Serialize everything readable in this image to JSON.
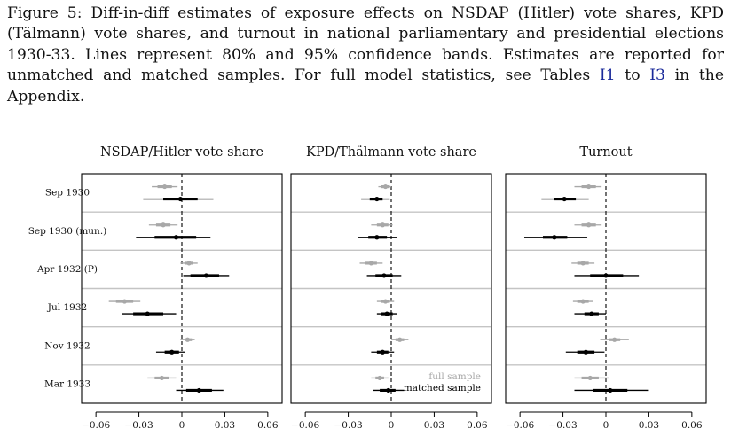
{
  "caption": {
    "part1": "Figure 5:  Diff-in-diff estimates of exposure effects on NSDAP (Hitler) vote shares, KPD (Tälmann) vote shares, and turnout in national parliamentary and presidential elections 1930-33.  Lines represent 80% and 95% confidence bands.  Estimates are reported for unmatched and matched samples.  For full model statistics, see Tables ",
    "ref1": "I1",
    "part2": " to ",
    "ref2": "I3",
    "part3": " in the Appendix."
  },
  "colors": {
    "full_sample": "#a8a8a8",
    "matched_sample": "#000000",
    "separator": "#c4c4c4"
  },
  "chart_data": {
    "type": "scatter",
    "panels": [
      {
        "title": "NSDAP/Hitler vote share",
        "rows": [
          {
            "full": {
              "est": -0.012,
              "ci80": [
                -0.017,
                -0.007
              ],
              "ci95": [
                -0.021,
                -0.003
              ]
            },
            "matched": {
              "est": -0.001,
              "ci80": [
                -0.013,
                0.011
              ],
              "ci95": [
                -0.027,
                0.022
              ]
            }
          },
          {
            "full": {
              "est": -0.013,
              "ci80": [
                -0.018,
                -0.008
              ],
              "ci95": [
                -0.023,
                -0.003
              ]
            },
            "matched": {
              "est": -0.004,
              "ci80": [
                -0.019,
                0.01
              ],
              "ci95": [
                -0.032,
                0.02
              ]
            }
          },
          {
            "full": {
              "est": 0.005,
              "ci80": [
                0.002,
                0.008
              ],
              "ci95": [
                -0.001,
                0.011
              ]
            },
            "matched": {
              "est": 0.017,
              "ci80": [
                0.006,
                0.026
              ],
              "ci95": [
                0.001,
                0.033
              ]
            }
          },
          {
            "full": {
              "est": -0.04,
              "ci80": [
                -0.046,
                -0.034
              ],
              "ci95": [
                -0.051,
                -0.029
              ]
            },
            "matched": {
              "est": -0.024,
              "ci80": [
                -0.034,
                -0.013
              ],
              "ci95": [
                -0.042,
                -0.004
              ]
            }
          },
          {
            "full": {
              "est": 0.004,
              "ci80": [
                0.002,
                0.007
              ],
              "ci95": [
                -0.001,
                0.009
              ]
            },
            "matched": {
              "est": -0.007,
              "ci80": [
                -0.012,
                -0.002
              ],
              "ci95": [
                -0.018,
                0.002
              ]
            }
          },
          {
            "full": {
              "est": -0.014,
              "ci80": [
                -0.019,
                -0.009
              ],
              "ci95": [
                -0.024,
                -0.004
              ]
            },
            "matched": {
              "est": 0.012,
              "ci80": [
                0.003,
                0.021
              ],
              "ci95": [
                -0.004,
                0.029
              ]
            }
          }
        ]
      },
      {
        "title": "KPD/Thälmann vote share",
        "rows": [
          {
            "full": {
              "est": -0.004,
              "ci80": [
                -0.007,
                -0.001
              ],
              "ci95": [
                -0.009,
                0.0
              ]
            },
            "matched": {
              "est": -0.01,
              "ci80": [
                -0.015,
                -0.006
              ],
              "ci95": [
                -0.021,
                -0.001
              ]
            }
          },
          {
            "full": {
              "est": -0.006,
              "ci80": [
                -0.01,
                -0.002
              ],
              "ci95": [
                -0.014,
                0.001
              ]
            },
            "matched": {
              "est": -0.01,
              "ci80": [
                -0.016,
                -0.003
              ],
              "ci95": [
                -0.023,
                0.004
              ]
            }
          },
          {
            "full": {
              "est": -0.014,
              "ci80": [
                -0.018,
                -0.01
              ],
              "ci95": [
                -0.022,
                -0.006
              ]
            },
            "matched": {
              "est": -0.005,
              "ci80": [
                -0.011,
                0.001
              ],
              "ci95": [
                -0.017,
                0.007
              ]
            }
          },
          {
            "full": {
              "est": -0.004,
              "ci80": [
                -0.007,
                -0.001
              ],
              "ci95": [
                -0.01,
                0.002
              ]
            },
            "matched": {
              "est": -0.003,
              "ci80": [
                -0.007,
                0.001
              ],
              "ci95": [
                -0.01,
                0.004
              ]
            }
          },
          {
            "full": {
              "est": 0.006,
              "ci80": [
                0.003,
                0.009
              ],
              "ci95": [
                0.0,
                0.012
              ]
            },
            "matched": {
              "est": -0.006,
              "ci80": [
                -0.01,
                -0.002
              ],
              "ci95": [
                -0.014,
                0.002
              ]
            }
          },
          {
            "full": {
              "est": -0.008,
              "ci80": [
                -0.011,
                -0.005
              ],
              "ci95": [
                -0.014,
                -0.002
              ]
            },
            "matched": {
              "est": -0.002,
              "ci80": [
                -0.008,
                0.003
              ],
              "ci95": [
                -0.013,
                0.009
              ]
            }
          }
        ]
      },
      {
        "title": "Turnout",
        "rows": [
          {
            "full": {
              "est": -0.012,
              "ci80": [
                -0.017,
                -0.007
              ],
              "ci95": [
                -0.022,
                -0.003
              ]
            },
            "matched": {
              "est": -0.029,
              "ci80": [
                -0.036,
                -0.021
              ],
              "ci95": [
                -0.045,
                -0.012
              ]
            }
          },
          {
            "full": {
              "est": -0.012,
              "ci80": [
                -0.017,
                -0.007
              ],
              "ci95": [
                -0.022,
                -0.003
              ]
            },
            "matched": {
              "est": -0.036,
              "ci80": [
                -0.044,
                -0.027
              ],
              "ci95": [
                -0.057,
                -0.013
              ]
            }
          },
          {
            "full": {
              "est": -0.016,
              "ci80": [
                -0.02,
                -0.012
              ],
              "ci95": [
                -0.024,
                -0.008
              ]
            },
            "matched": {
              "est": 0.0,
              "ci80": [
                -0.011,
                0.012
              ],
              "ci95": [
                -0.022,
                0.023
              ]
            }
          },
          {
            "full": {
              "est": -0.016,
              "ci80": [
                -0.02,
                -0.012
              ],
              "ci95": [
                -0.023,
                -0.009
              ]
            },
            "matched": {
              "est": -0.01,
              "ci80": [
                -0.015,
                -0.005
              ],
              "ci95": [
                -0.022,
                0.0
              ]
            }
          },
          {
            "full": {
              "est": 0.006,
              "ci80": [
                0.002,
                0.01
              ],
              "ci95": [
                -0.004,
                0.016
              ]
            },
            "matched": {
              "est": -0.014,
              "ci80": [
                -0.02,
                -0.008
              ],
              "ci95": [
                -0.028,
                -0.001
              ]
            }
          },
          {
            "full": {
              "est": -0.011,
              "ci80": [
                -0.017,
                -0.005
              ],
              "ci95": [
                -0.022,
                0.002
              ]
            },
            "matched": {
              "est": 0.003,
              "ci80": [
                -0.009,
                0.015
              ],
              "ci95": [
                -0.022,
                0.03
              ]
            }
          }
        ]
      }
    ],
    "row_labels": [
      "Sep 1930",
      "Sep 1930 (mun.)",
      "Apr 1932 (P)",
      "Jul 1932",
      "Nov 1932",
      "Mar 1933"
    ],
    "series": [
      {
        "name": "full sample"
      },
      {
        "name": "matched sample"
      }
    ],
    "xlim": [
      -0.07,
      0.07
    ],
    "xticks": [
      -0.06,
      -0.03,
      0,
      0.03,
      0.06
    ],
    "xtick_labels": [
      "−0.06",
      "−0.03",
      "0",
      "0.03",
      "0.06"
    ],
    "reference_line_x": 0,
    "legend_position": "bottom-right of last panel"
  }
}
